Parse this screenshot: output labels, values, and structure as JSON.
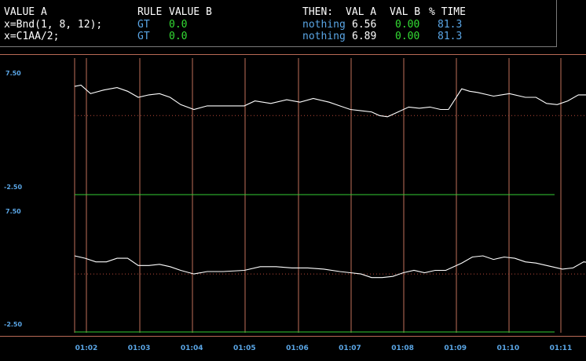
{
  "header": {
    "col_value_a": "VALUE A",
    "col_rule": "RULE",
    "col_value_b": "VALUE B",
    "col_then": "THEN:",
    "col_val_a": "VAL A",
    "col_val_b": "VAL B",
    "col_pct_time": "% TIME"
  },
  "rules": [
    {
      "expr": "x=Bnd(1, 8, 12);",
      "rule": "GT",
      "value_b": "0.0",
      "then": "nothing",
      "val_a": "6.56",
      "val_b": "0.00",
      "pct_time": "81.3"
    },
    {
      "expr": "x=C1AA/2;",
      "rule": "GT",
      "value_b": "0.0",
      "then": "nothing",
      "val_a": "6.89",
      "val_b": "0.00",
      "pct_time": "81.3"
    }
  ],
  "colors": {
    "signal": "#ffffff",
    "vertical_grid": "#c0705a",
    "threshold": "#33cc33",
    "reference": "#b84a3a",
    "labels": "#5aa6e6"
  },
  "chart_data": [
    {
      "type": "line",
      "ymax_label": "7.50",
      "ymin_label": "-2.50",
      "ylim": [
        -2.5,
        7.5
      ],
      "reference_y": 4.0,
      "threshold_y": -2.5,
      "x": [
        "01:02",
        "01:03",
        "01:04",
        "01:05",
        "01:06",
        "01:07",
        "01:08",
        "01:09",
        "01:10",
        "01:11"
      ],
      "tick_labels": [
        "01:02",
        "01:03",
        "01:04",
        "01:05",
        "01:06",
        "01:07",
        "01:08",
        "01:09",
        "01:10",
        "01:11"
      ],
      "points": [
        [
          0,
          6.4
        ],
        [
          0.12,
          6.5
        ],
        [
          0.3,
          5.8
        ],
        [
          0.55,
          6.1
        ],
        [
          0.8,
          6.3
        ],
        [
          1.0,
          6.0
        ],
        [
          1.2,
          5.5
        ],
        [
          1.4,
          5.7
        ],
        [
          1.6,
          5.8
        ],
        [
          1.8,
          5.5
        ],
        [
          2.0,
          4.9
        ],
        [
          2.25,
          4.5
        ],
        [
          2.5,
          4.8
        ],
        [
          2.8,
          4.8
        ],
        [
          3.2,
          4.8
        ],
        [
          3.4,
          5.2
        ],
        [
          3.7,
          5.0
        ],
        [
          4.0,
          5.3
        ],
        [
          4.25,
          5.1
        ],
        [
          4.5,
          5.4
        ],
        [
          4.8,
          5.1
        ],
        [
          5.0,
          4.8
        ],
        [
          5.2,
          4.5
        ],
        [
          5.4,
          4.4
        ],
        [
          5.6,
          4.3
        ],
        [
          5.75,
          4.0
        ],
        [
          5.9,
          3.9
        ],
        [
          6.1,
          4.3
        ],
        [
          6.3,
          4.7
        ],
        [
          6.5,
          4.6
        ],
        [
          6.7,
          4.7
        ],
        [
          6.9,
          4.5
        ],
        [
          7.05,
          4.5
        ],
        [
          7.3,
          6.2
        ],
        [
          7.45,
          6.0
        ],
        [
          7.6,
          5.9
        ],
        [
          7.9,
          5.6
        ],
        [
          8.2,
          5.8
        ],
        [
          8.5,
          5.5
        ],
        [
          8.7,
          5.5
        ],
        [
          8.9,
          5.0
        ],
        [
          9.1,
          4.9
        ],
        [
          9.3,
          5.2
        ],
        [
          9.5,
          5.7
        ],
        [
          9.7,
          5.7
        ],
        [
          9.9,
          5.7
        ]
      ]
    },
    {
      "type": "line",
      "ymax_label": "7.50",
      "ymin_label": "-2.50",
      "ylim": [
        -2.5,
        7.5
      ],
      "reference_y": 2.3,
      "threshold_y": -2.5,
      "x": [
        "01:02",
        "01:03",
        "01:04",
        "01:05",
        "01:06",
        "01:07",
        "01:08",
        "01:09",
        "01:10",
        "01:11"
      ],
      "tick_labels": [],
      "points": [
        [
          0,
          3.8
        ],
        [
          0.2,
          3.6
        ],
        [
          0.4,
          3.3
        ],
        [
          0.6,
          3.3
        ],
        [
          0.8,
          3.6
        ],
        [
          1.0,
          3.6
        ],
        [
          1.2,
          3.0
        ],
        [
          1.4,
          3.0
        ],
        [
          1.6,
          3.1
        ],
        [
          1.8,
          2.9
        ],
        [
          2.0,
          2.6
        ],
        [
          2.25,
          2.3
        ],
        [
          2.5,
          2.5
        ],
        [
          2.8,
          2.5
        ],
        [
          3.2,
          2.6
        ],
        [
          3.5,
          2.9
        ],
        [
          3.8,
          2.9
        ],
        [
          4.1,
          2.8
        ],
        [
          4.4,
          2.8
        ],
        [
          4.7,
          2.7
        ],
        [
          5.0,
          2.5
        ],
        [
          5.2,
          2.4
        ],
        [
          5.4,
          2.3
        ],
        [
          5.6,
          2.0
        ],
        [
          5.8,
          2.0
        ],
        [
          6.0,
          2.1
        ],
        [
          6.2,
          2.4
        ],
        [
          6.4,
          2.6
        ],
        [
          6.6,
          2.4
        ],
        [
          6.8,
          2.6
        ],
        [
          7.0,
          2.6
        ],
        [
          7.3,
          3.2
        ],
        [
          7.5,
          3.7
        ],
        [
          7.7,
          3.8
        ],
        [
          7.9,
          3.5
        ],
        [
          8.1,
          3.7
        ],
        [
          8.3,
          3.6
        ],
        [
          8.5,
          3.3
        ],
        [
          8.7,
          3.2
        ],
        [
          9.0,
          2.9
        ],
        [
          9.2,
          2.7
        ],
        [
          9.4,
          2.8
        ],
        [
          9.6,
          3.3
        ],
        [
          9.8,
          3.2
        ],
        [
          9.9,
          3.2
        ]
      ]
    }
  ]
}
